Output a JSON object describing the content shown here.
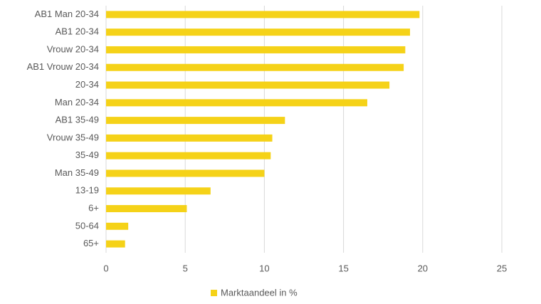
{
  "chart_data": {
    "type": "hbar",
    "categories": [
      "AB1 Man 20-34",
      "AB1 20-34",
      "Vrouw 20-34",
      "AB1 Vrouw 20-34",
      "20-34",
      "Man 20-34",
      "AB1 35-49",
      "Vrouw 35-49",
      "35-49",
      "Man 35-49",
      "13-19",
      "6+",
      "50-64",
      "65+"
    ],
    "series": [
      {
        "name": "Marktaandeel in %",
        "color": "#f5d218",
        "values": [
          19.8,
          19.2,
          18.9,
          18.8,
          17.9,
          16.5,
          11.3,
          10.5,
          10.4,
          10.0,
          6.6,
          5.1,
          1.4,
          1.2
        ]
      }
    ],
    "xlim": [
      0,
      25
    ],
    "xticks": [
      0,
      5,
      10,
      15,
      20,
      25
    ],
    "grid": true,
    "legend": "bottom"
  }
}
